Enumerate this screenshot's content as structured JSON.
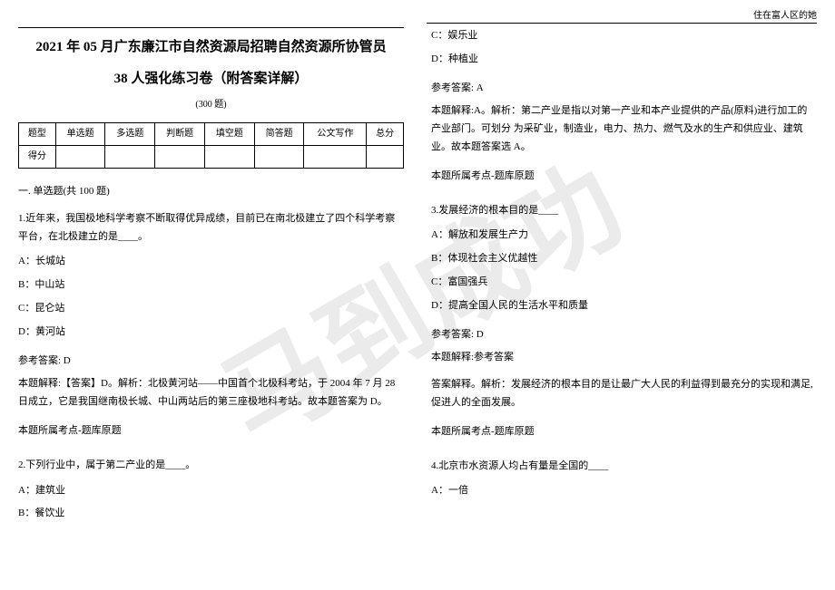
{
  "header_right": "住在富人区的她",
  "watermark": "马到成功",
  "title": "2021 年 05 月广东廉江市自然资源局招聘自然资源所协管员",
  "subtitle": "38 人强化练习卷（附答案详解）",
  "count": "(300 题)",
  "table": {
    "headers": [
      "题型",
      "单选题",
      "多选题",
      "判断题",
      "填空题",
      "简答题",
      "公文写作",
      "总分"
    ],
    "row2_label": "得分"
  },
  "section1_title": "一. 单选题(共 100 题)",
  "q1": {
    "stem": "1.近年来，我国极地科学考察不断取得优异成绩，目前已在南北极建立了四个科学考察平台，在北极建立的是____。",
    "optA": "A：长城站",
    "optB": "B：中山站",
    "optC": "C：昆仑站",
    "optD": "D：黄河站",
    "answer_label": "参考答案: D",
    "explanation": "本题解释:【答案】D。解析：北极黄河站——中国首个北极科考站，于 2004 年 7 月 28 日成立，它是我国继南极长城、中山两站后的第三座极地科考站。故本题答案为 D。",
    "topic": "本题所属考点-题库原题"
  },
  "q2": {
    "stem": "2.下列行业中，属于第二产业的是____。",
    "optA": "A：建筑业",
    "optB": "B：餐饮业",
    "optC": "C：娱乐业",
    "optD": "D：种植业",
    "answer_label": "参考答案: A",
    "explanation": "本题解释:A。解析：第二产业是指以对第一产业和本产业提供的产品(原料)进行加工的产业部门。可划分 为采矿业，制造业，电力、热力、燃气及水的生产和供应业、建筑业。故本题答案选 A。",
    "topic": "本题所属考点-题库原题"
  },
  "q3": {
    "stem": "3.发展经济的根本目的是____",
    "optA": "A：解放和发展生产力",
    "optB": "B：体现社会主义优越性",
    "optC": "C：富国强兵",
    "optD": "D：提高全国人民的生活水平和质量",
    "answer_label": "参考答案: D",
    "explanation_label": "本题解释:参考答案",
    "explanation": "答案解释。解析：发展经济的根本目的是让最广大人民的利益得到最充分的实现和满足,促进人的全面发展。",
    "topic": "本题所属考点-题库原题"
  },
  "q4": {
    "stem": "4.北京市水资源人均占有量是全国的____",
    "optA": "A：一倍"
  }
}
